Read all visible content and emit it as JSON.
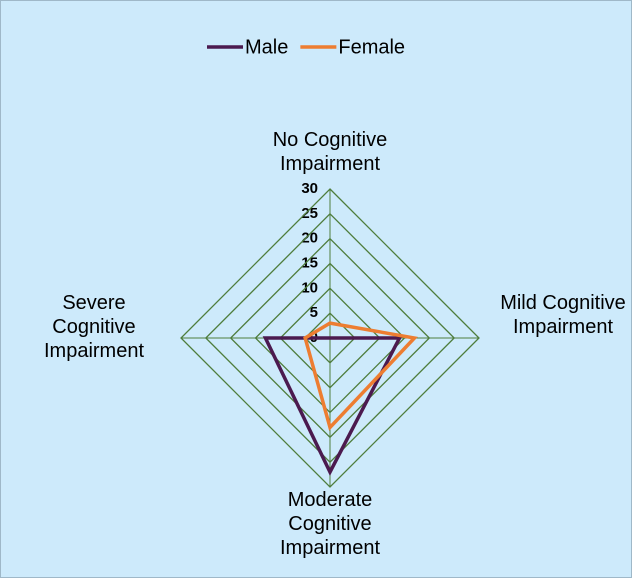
{
  "chart_data": {
    "type": "radar",
    "categories": [
      "No Cognitive Impairment",
      "Mild Cognitive Impairment",
      "Moderate Cognitive Impairment",
      "Severe Cognitive Impairment"
    ],
    "series": [
      {
        "name": "Male",
        "color": "#4b1a4f",
        "values": [
          0,
          14,
          27,
          13
        ]
      },
      {
        "name": "Female",
        "color": "#ed7d31",
        "values": [
          3,
          17,
          18,
          5
        ]
      }
    ],
    "ylim": [
      0,
      30
    ],
    "yticks": [
      0,
      5,
      10,
      15,
      20,
      25,
      30
    ],
    "grid": true,
    "grid_color": "#4e7d3c",
    "legend": "top"
  }
}
